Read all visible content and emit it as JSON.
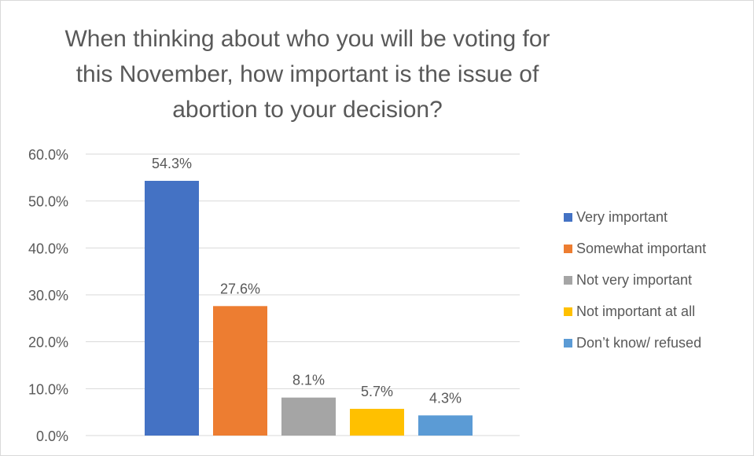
{
  "chart_data": {
    "type": "bar",
    "title": "When thinking about who you will be voting for this November, how important is the issue of abortion to your decision?",
    "title_lines": [
      "When thinking about who you will be voting for",
      "this November, how important is the issue of",
      "abortion to your decision?"
    ],
    "categories": [
      "Very important",
      "Somewhat important",
      "Not very important",
      "Not important at all",
      "Don’t know/ refused"
    ],
    "values": [
      54.3,
      27.6,
      8.1,
      5.7,
      4.3
    ],
    "data_labels": [
      "54.3%",
      "27.6%",
      "8.1%",
      "5.7%",
      "4.3%"
    ],
    "colors": [
      "#4472c4",
      "#ed7d31",
      "#a5a5a5",
      "#ffc000",
      "#5b9bd5"
    ],
    "ylim": [
      0,
      60
    ],
    "yticks": [
      0,
      10,
      20,
      30,
      40,
      50,
      60
    ],
    "ytick_labels": [
      "0.0%",
      "10.0%",
      "20.0%",
      "30.0%",
      "40.0%",
      "50.0%",
      "60.0%"
    ],
    "xlabel": "",
    "ylabel": "",
    "grid": true,
    "legend_position": "right"
  }
}
